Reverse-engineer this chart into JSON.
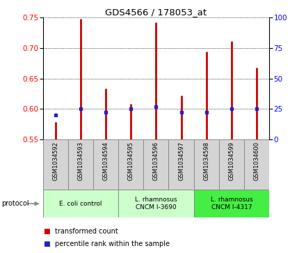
{
  "title": "GDS4566 / 178053_at",
  "samples": [
    "GSM1034592",
    "GSM1034593",
    "GSM1034594",
    "GSM1034595",
    "GSM1034596",
    "GSM1034597",
    "GSM1034598",
    "GSM1034599",
    "GSM1034600"
  ],
  "transformed_count": [
    0.578,
    0.748,
    0.633,
    0.608,
    0.742,
    0.622,
    0.694,
    0.712,
    0.668
  ],
  "percentile_rank": [
    20,
    25,
    22,
    25,
    27,
    22,
    22,
    25,
    25
  ],
  "ylim_left": [
    0.55,
    0.75
  ],
  "ylim_right": [
    0,
    100
  ],
  "yticks_left": [
    0.55,
    0.6,
    0.65,
    0.7,
    0.75
  ],
  "yticks_right": [
    0,
    25,
    50,
    75,
    100
  ],
  "bar_bottom": 0.55,
  "bar_color": "#cc0000",
  "dot_color": "#2222cc",
  "group_info": [
    {
      "label": "E. coli control",
      "start": 0,
      "end": 3,
      "color": "#ccffcc"
    },
    {
      "label": "L. rhamnosus\nCNCM I-3690",
      "start": 3,
      "end": 6,
      "color": "#ccffcc"
    },
    {
      "label": "L. rhamnosus\nCNCM I-4317",
      "start": 6,
      "end": 9,
      "color": "#44ee44"
    }
  ],
  "sample_bg": "#d4d4d4",
  "legend_tc": "transformed count",
  "legend_pr": "percentile rank within the sample",
  "protocol_label": "protocol"
}
